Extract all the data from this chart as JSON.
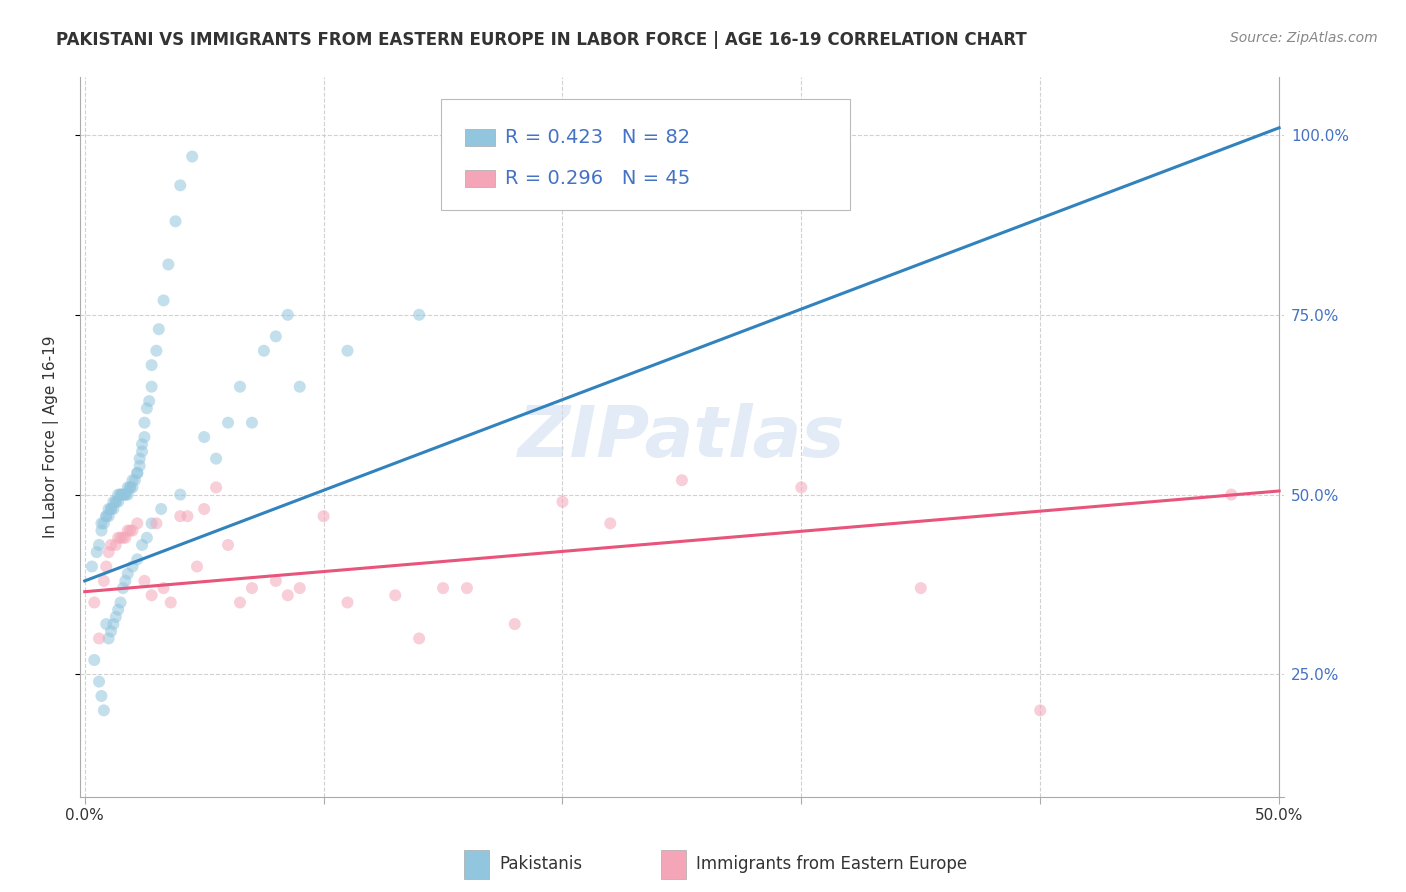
{
  "title": "PAKISTANI VS IMMIGRANTS FROM EASTERN EUROPE IN LABOR FORCE | AGE 16-19 CORRELATION CHART",
  "source": "Source: ZipAtlas.com",
  "ylabel": "In Labor Force | Age 16-19",
  "xlim": [
    -0.002,
    0.502
  ],
  "ylim": [
    0.08,
    1.08
  ],
  "blue_color": "#92c5de",
  "pink_color": "#f4a6b8",
  "blue_line_color": "#3182bd",
  "pink_line_color": "#e8547a",
  "R_blue": 0.423,
  "N_blue": 82,
  "R_pink": 0.296,
  "N_pink": 45,
  "legend_label_blue": "Pakistanis",
  "legend_label_pink": "Immigrants from Eastern Europe",
  "watermark_text": "ZIPatlas",
  "blue_scatter_x": [
    0.003,
    0.005,
    0.006,
    0.007,
    0.007,
    0.008,
    0.009,
    0.009,
    0.01,
    0.01,
    0.011,
    0.011,
    0.012,
    0.012,
    0.013,
    0.013,
    0.014,
    0.014,
    0.015,
    0.015,
    0.016,
    0.016,
    0.017,
    0.017,
    0.018,
    0.018,
    0.019,
    0.019,
    0.02,
    0.02,
    0.021,
    0.022,
    0.022,
    0.023,
    0.023,
    0.024,
    0.024,
    0.025,
    0.025,
    0.026,
    0.027,
    0.028,
    0.028,
    0.03,
    0.031,
    0.033,
    0.035,
    0.038,
    0.04,
    0.045,
    0.05,
    0.06,
    0.065,
    0.075,
    0.08,
    0.085,
    0.004,
    0.006,
    0.007,
    0.008,
    0.009,
    0.01,
    0.011,
    0.012,
    0.013,
    0.014,
    0.015,
    0.016,
    0.017,
    0.018,
    0.02,
    0.022,
    0.024,
    0.026,
    0.028,
    0.032,
    0.04,
    0.055,
    0.07,
    0.09,
    0.11,
    0.14
  ],
  "blue_scatter_y": [
    0.4,
    0.42,
    0.43,
    0.45,
    0.46,
    0.46,
    0.47,
    0.47,
    0.47,
    0.48,
    0.48,
    0.48,
    0.48,
    0.49,
    0.49,
    0.49,
    0.49,
    0.5,
    0.5,
    0.5,
    0.5,
    0.5,
    0.5,
    0.5,
    0.5,
    0.51,
    0.51,
    0.51,
    0.51,
    0.52,
    0.52,
    0.53,
    0.53,
    0.54,
    0.55,
    0.56,
    0.57,
    0.58,
    0.6,
    0.62,
    0.63,
    0.65,
    0.68,
    0.7,
    0.73,
    0.77,
    0.82,
    0.88,
    0.93,
    0.97,
    0.58,
    0.6,
    0.65,
    0.7,
    0.72,
    0.75,
    0.27,
    0.24,
    0.22,
    0.2,
    0.32,
    0.3,
    0.31,
    0.32,
    0.33,
    0.34,
    0.35,
    0.37,
    0.38,
    0.39,
    0.4,
    0.41,
    0.43,
    0.44,
    0.46,
    0.48,
    0.5,
    0.55,
    0.6,
    0.65,
    0.7,
    0.75
  ],
  "pink_scatter_x": [
    0.004,
    0.006,
    0.008,
    0.009,
    0.01,
    0.011,
    0.013,
    0.014,
    0.015,
    0.016,
    0.017,
    0.018,
    0.019,
    0.02,
    0.022,
    0.025,
    0.028,
    0.03,
    0.033,
    0.036,
    0.04,
    0.043,
    0.047,
    0.05,
    0.055,
    0.06,
    0.065,
    0.07,
    0.08,
    0.085,
    0.09,
    0.1,
    0.11,
    0.13,
    0.14,
    0.15,
    0.16,
    0.18,
    0.2,
    0.22,
    0.25,
    0.3,
    0.35,
    0.4,
    0.48
  ],
  "pink_scatter_y": [
    0.35,
    0.3,
    0.38,
    0.4,
    0.42,
    0.43,
    0.43,
    0.44,
    0.44,
    0.44,
    0.44,
    0.45,
    0.45,
    0.45,
    0.46,
    0.38,
    0.36,
    0.46,
    0.37,
    0.35,
    0.47,
    0.47,
    0.4,
    0.48,
    0.51,
    0.43,
    0.35,
    0.37,
    0.38,
    0.36,
    0.37,
    0.47,
    0.35,
    0.36,
    0.3,
    0.37,
    0.37,
    0.32,
    0.49,
    0.46,
    0.52,
    0.51,
    0.37,
    0.2,
    0.5
  ],
  "blue_trend_x": [
    0.0,
    0.5
  ],
  "blue_trend_y": [
    0.38,
    1.01
  ],
  "pink_trend_x": [
    0.0,
    0.5
  ],
  "pink_trend_y": [
    0.365,
    0.505
  ],
  "title_fontsize": 12,
  "axis_label_fontsize": 11,
  "tick_fontsize": 11,
  "legend_fontsize": 13,
  "source_fontsize": 10,
  "watermark_fontsize": 52,
  "dot_size": 75,
  "dot_alpha": 0.55,
  "background_color": "#ffffff",
  "grid_color": "#cccccc",
  "right_tick_color": "#4472c4",
  "legend_R_color": "#4472c4",
  "legend_N_color": "#e05c2a",
  "ytick_vals": [
    0.25,
    0.5,
    0.75,
    1.0
  ],
  "ytick_labels": [
    "25.0%",
    "50.0%",
    "75.0%",
    "100.0%"
  ]
}
